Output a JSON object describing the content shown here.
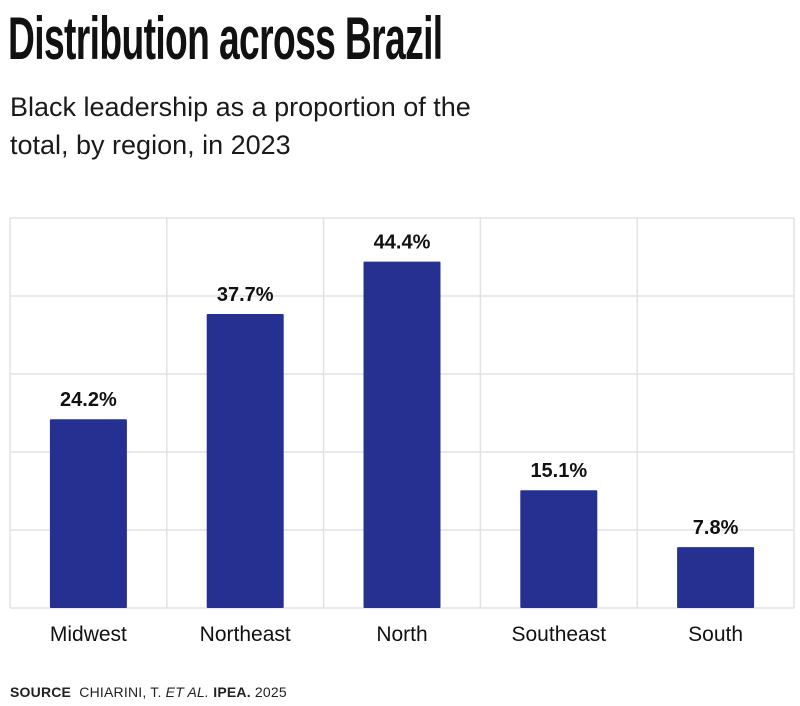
{
  "title": "Distribution across Brazil",
  "subtitle": "Black leadership as a proportion of the total, by region, in 2023",
  "source": {
    "label": "SOURCE",
    "author": "CHIARINI, T.",
    "etal": "ET AL.",
    "publisher": "IPEA.",
    "year": "2025"
  },
  "chart_data": {
    "type": "bar",
    "categories": [
      "Midwest",
      "Northeast",
      "North",
      "Southeast",
      "South"
    ],
    "values": [
      24.2,
      37.7,
      44.4,
      15.1,
      7.8
    ],
    "data_labels": [
      "24.2%",
      "37.7%",
      "44.4%",
      "15.1%",
      "7.8%"
    ],
    "ylim": [
      0,
      50
    ],
    "grid": true,
    "bar_color": "#253090",
    "grid_color": "#e2e2e2"
  }
}
